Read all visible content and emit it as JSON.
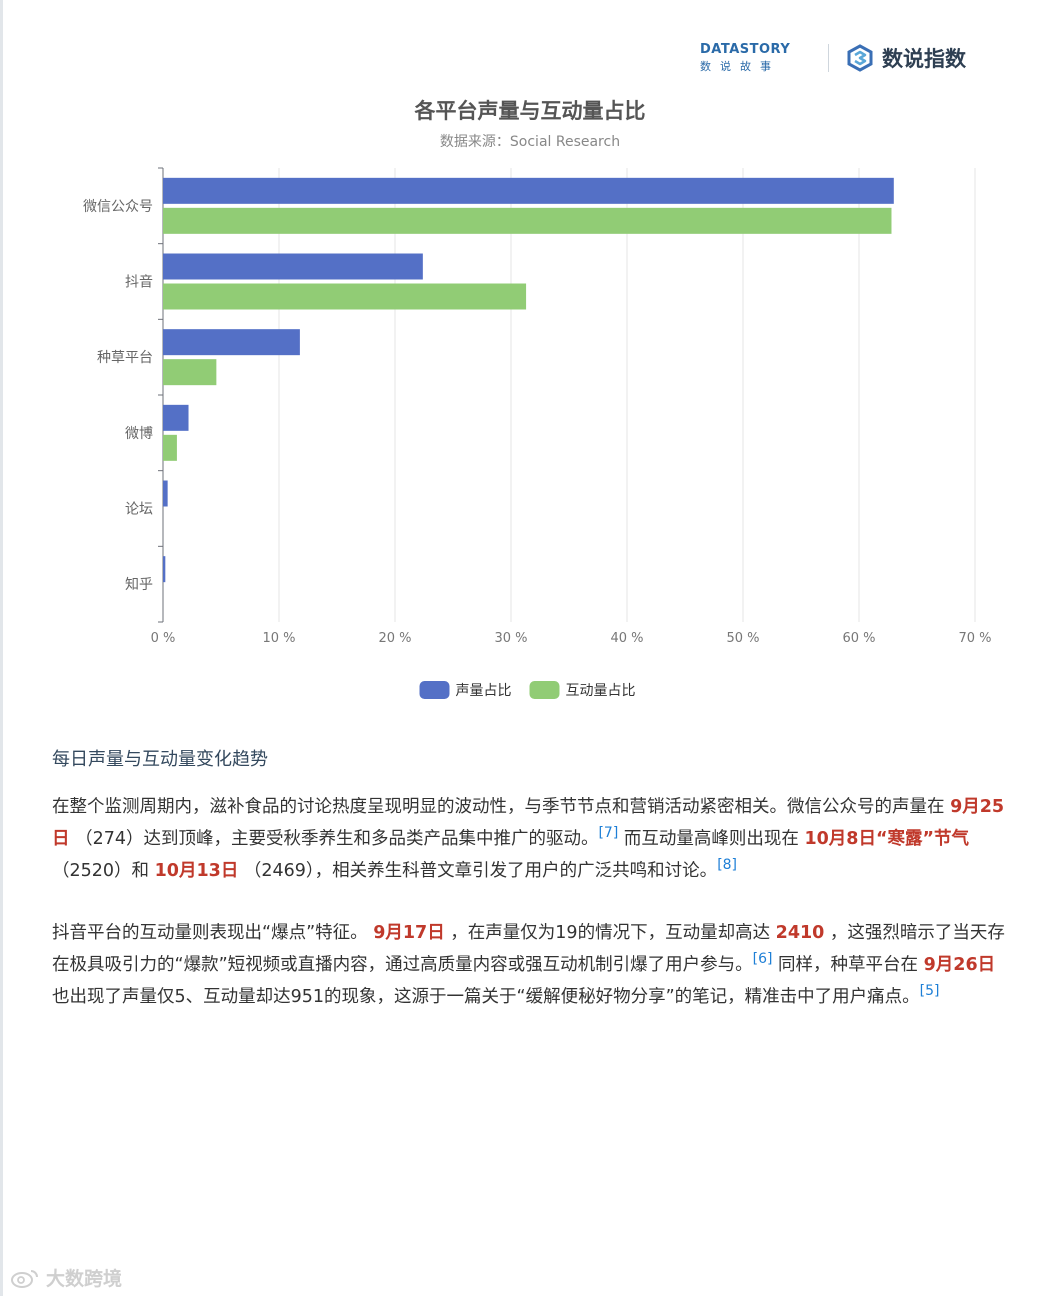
{
  "header": {
    "brand_en": "DATASTORY",
    "brand_zh": "数说故事",
    "index_brand": "数说指数",
    "colors": {
      "brand": "#2a6aa8",
      "index_logo": "#2e3f52"
    }
  },
  "chart_data": {
    "type": "bar",
    "orientation": "horizontal",
    "title": "各平台声量与互动量占比",
    "subtitle": "数据来源：Social Research",
    "categories": [
      "微信公众号",
      "抖音",
      "种草平台",
      "微博",
      "论坛",
      "知乎"
    ],
    "series": [
      {
        "name": "声量占比",
        "color": "#5470c6",
        "values": [
          63.0,
          22.4,
          11.8,
          2.2,
          0.4,
          0.2
        ]
      },
      {
        "name": "互动量占比",
        "color": "#91cc75",
        "values": [
          62.8,
          31.3,
          4.6,
          1.2,
          0.0,
          0.0
        ]
      }
    ],
    "xlim": [
      0,
      70
    ],
    "xticks": [
      "0 %",
      "10 %",
      "20 %",
      "30 %",
      "40 %",
      "50 %",
      "60 %",
      "70 %"
    ],
    "grid": true,
    "legend_position": "bottom-center"
  },
  "section": {
    "title": "每日声量与互动量变化趋势"
  },
  "paragraphs": {
    "p1": {
      "t1": "在整个监测周期内，滋补食品的讨论热度呈现明显的波动性，与季节节点和营销活动紧密相关。微信公众号的声量在 ",
      "h1": "9月25日",
      "t2": " （274）达到顶峰，主要受秋季养生和多品类产品集中推广的驱动。",
      "r1": "[7]",
      "t3": " 而互动量高峰则出现在 ",
      "h2": "10月8日“寒露”节气",
      "t4": " （2520）和 ",
      "h3": "10月13日",
      "t5": " （2469），相关养生科普文章引发了用户的广泛共鸣和讨论。",
      "r2": "[8]"
    },
    "p2": {
      "t1": "抖音平台的互动量则表现出“爆点”特征。 ",
      "h1": "9月17日",
      "t2": " ，在声量仅为19的情况下，互动量却高达 ",
      "h2": "2410",
      "t3": " ，这强烈暗示了当天存在极具吸引力的“爆款”短视频或直播内容，通过高质量内容或强互动机制引爆了用户参与。",
      "r1": "[6]",
      "t4": " 同样，种草平台在 ",
      "h3": "9月26日",
      "t5": " 也出现了声量仅5、互动量却达951的现象，这源于一篇关于“缓解便秘好物分享”的笔记，精准击中了用户痛点。",
      "r2": "[5]"
    }
  },
  "watermark": {
    "text": "大数跨境",
    "icon": "weibo-icon"
  }
}
